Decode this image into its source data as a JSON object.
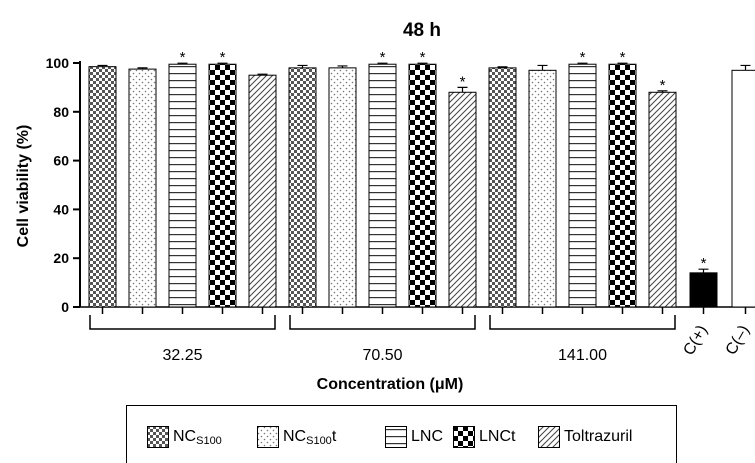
{
  "chart_data": {
    "type": "bar",
    "title": "48 h",
    "ylabel": "Cell viability (%)",
    "xlabel": "Concentration (μM)",
    "ylim": [
      0,
      100
    ],
    "yticks": [
      0,
      20,
      40,
      60,
      80,
      100
    ],
    "groups": [
      "32.25",
      "70.50",
      "141.00"
    ],
    "series": [
      {
        "name": "NC",
        "sub": "S100",
        "suffix": "",
        "pattern": "checker",
        "values": [
          98.5,
          98.0,
          98.0
        ],
        "errors": [
          0.5,
          1.0,
          0.4
        ],
        "significant": [
          false,
          false,
          false
        ]
      },
      {
        "name": "NC",
        "sub": "S100",
        "suffix": "t",
        "pattern": "dots",
        "values": [
          97.5,
          98.0,
          97.0
        ],
        "errors": [
          0.5,
          0.8,
          2.0
        ],
        "significant": [
          false,
          false,
          false
        ]
      },
      {
        "name": "LNC",
        "sub": "",
        "suffix": "",
        "pattern": "hlines",
        "values": [
          99.5,
          99.5,
          99.5
        ],
        "errors": [
          0.4,
          0.4,
          0.4
        ],
        "significant": [
          true,
          true,
          true
        ]
      },
      {
        "name": "LNCt",
        "sub": "",
        "suffix": "",
        "pattern": "bigchecker",
        "values": [
          99.5,
          99.5,
          99.5
        ],
        "errors": [
          0.4,
          0.4,
          0.4
        ],
        "significant": [
          true,
          true,
          true
        ]
      },
      {
        "name": "Toltrazuril",
        "sub": "",
        "suffix": "",
        "pattern": "diag",
        "values": [
          95.0,
          88.0,
          88.0
        ],
        "errors": [
          0.4,
          2.0,
          0.6
        ],
        "significant": [
          false,
          true,
          true
        ]
      }
    ],
    "controls": [
      {
        "label": "C(+)",
        "value": 14.0,
        "error": 1.5,
        "significant": true,
        "fill": "#000000"
      },
      {
        "label": "C(–)",
        "value": 97.0,
        "error": 2.0,
        "significant": false,
        "fill": "#ffffff"
      }
    ],
    "grid": false,
    "legend_position": "bottom"
  }
}
